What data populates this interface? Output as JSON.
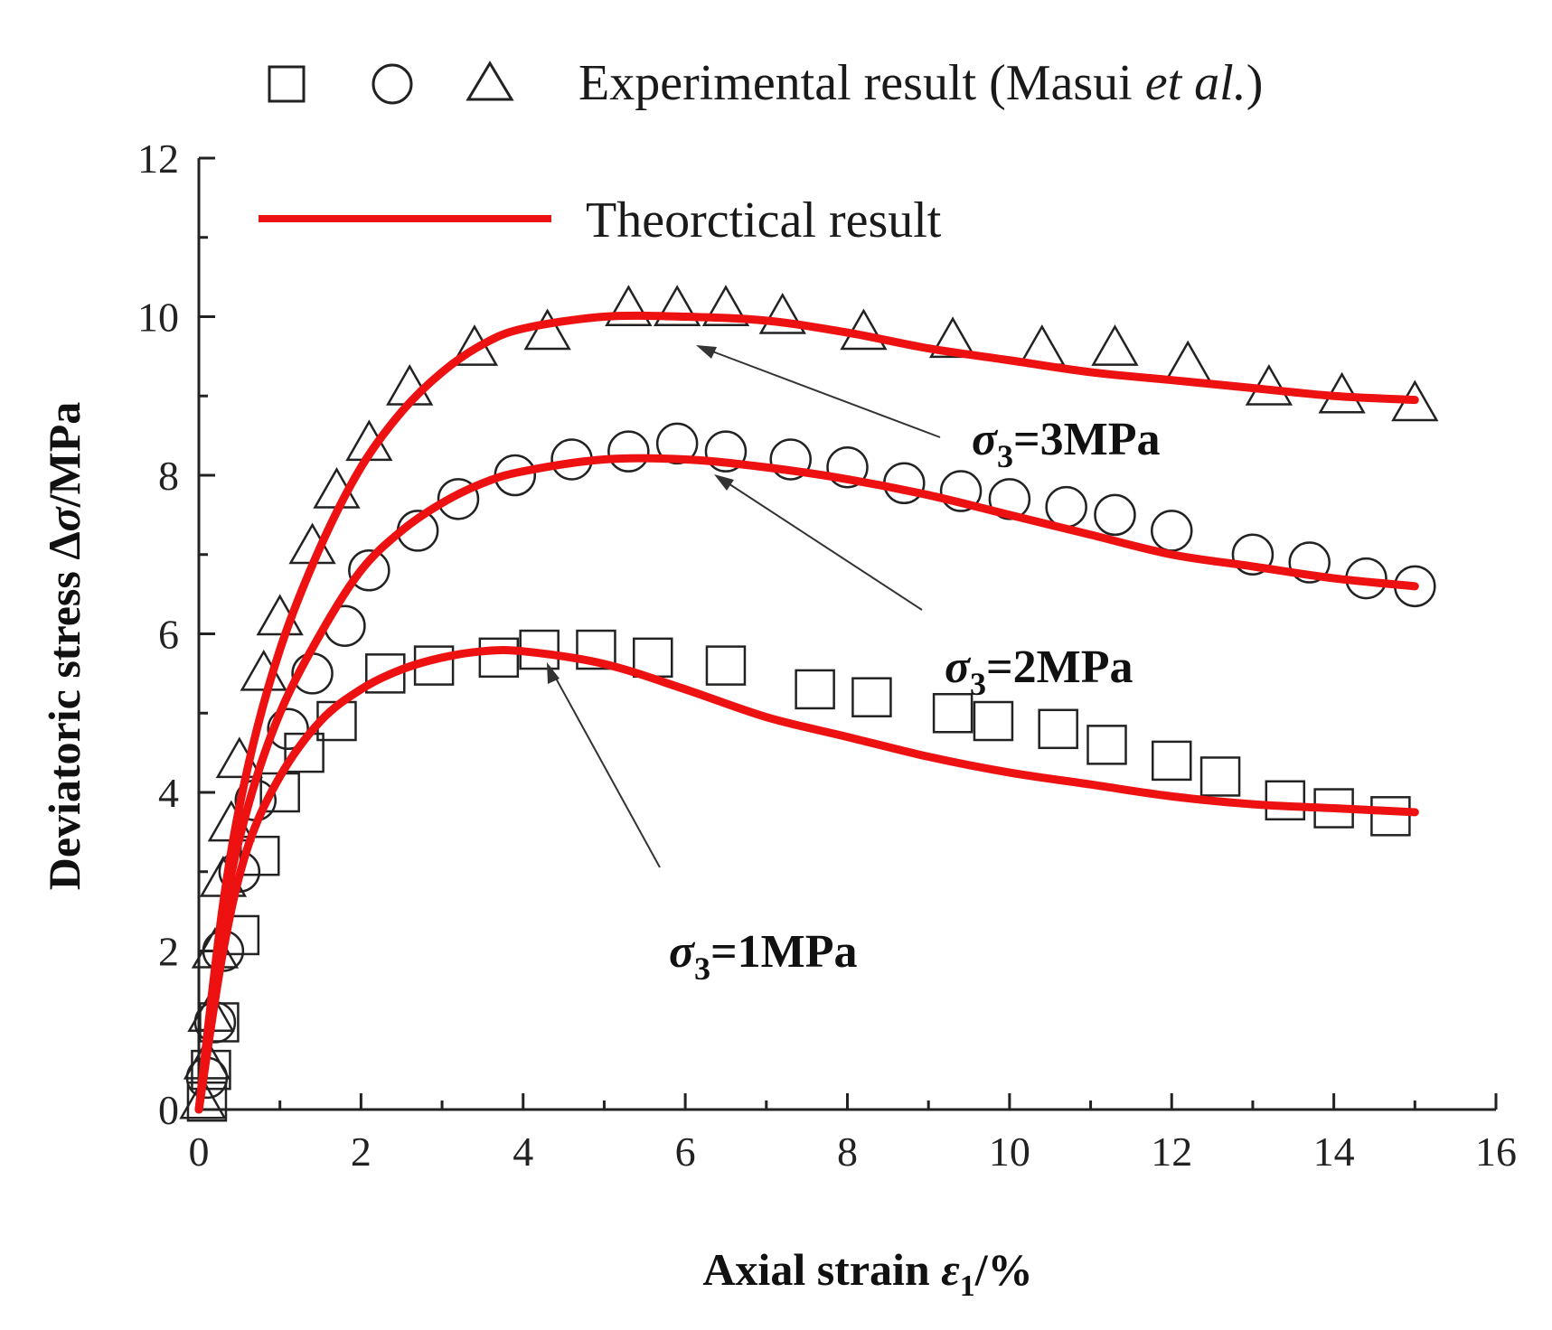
{
  "chart_data": {
    "type": "scatter",
    "xlabel": {
      "prefix": "Axial strain ",
      "symbol": "ε",
      "sub": "1",
      "suffix": "/%"
    },
    "ylabel": {
      "prefix": "Deviatoric stress Δ",
      "symbol": "σ",
      "suffix": "/MPa"
    },
    "xlim": [
      0,
      16
    ],
    "ylim": [
      0,
      12
    ],
    "x_ticks": [
      0,
      2,
      4,
      6,
      8,
      10,
      12,
      14,
      16
    ],
    "y_ticks": [
      0,
      2,
      4,
      6,
      8,
      10,
      12
    ],
    "grid": false,
    "legend": {
      "position": "top",
      "experimental": {
        "prefix": "Experimental result (Masui ",
        "italic": "et al.",
        "suffix": ")",
        "markers": [
          "square",
          "circle",
          "triangle"
        ]
      },
      "theoretical": {
        "label": "Theorctical result",
        "color": "#ee1111"
      }
    },
    "series": [
      {
        "name": "σ3=3MPa",
        "marker": "triangle",
        "annotation": {
          "symbol": "σ",
          "sub": "3",
          "text": "=3MPa"
        },
        "experimental": [
          [
            0.05,
            0.1
          ],
          [
            0.1,
            0.6
          ],
          [
            0.15,
            1.2
          ],
          [
            0.2,
            2.0
          ],
          [
            0.3,
            2.9
          ],
          [
            0.4,
            3.6
          ],
          [
            0.5,
            4.4
          ],
          [
            0.8,
            5.5
          ],
          [
            1.0,
            6.2
          ],
          [
            1.4,
            7.1
          ],
          [
            1.7,
            7.8
          ],
          [
            2.1,
            8.4
          ],
          [
            2.6,
            9.1
          ],
          [
            3.4,
            9.6
          ],
          [
            4.3,
            9.8
          ],
          [
            5.3,
            10.1
          ],
          [
            5.9,
            10.1
          ],
          [
            6.5,
            10.1
          ],
          [
            7.2,
            10.0
          ],
          [
            8.2,
            9.8
          ],
          [
            9.3,
            9.7
          ],
          [
            10.4,
            9.6
          ],
          [
            11.3,
            9.6
          ],
          [
            12.2,
            9.4
          ],
          [
            13.2,
            9.1
          ],
          [
            14.1,
            9.0
          ],
          [
            15.0,
            8.9
          ]
        ],
        "theoretical": [
          [
            0,
            0
          ],
          [
            0.3,
            2.6
          ],
          [
            0.6,
            4.3
          ],
          [
            1.0,
            5.8
          ],
          [
            1.5,
            7.1
          ],
          [
            2.0,
            8.1
          ],
          [
            2.5,
            8.8
          ],
          [
            3.0,
            9.3
          ],
          [
            3.5,
            9.65
          ],
          [
            4.0,
            9.85
          ],
          [
            5.0,
            10.0
          ],
          [
            6.0,
            10.0
          ],
          [
            7.0,
            9.95
          ],
          [
            8.0,
            9.8
          ],
          [
            9.0,
            9.6
          ],
          [
            10.0,
            9.45
          ],
          [
            11.0,
            9.3
          ],
          [
            12.0,
            9.2
          ],
          [
            13.0,
            9.1
          ],
          [
            14.0,
            9.0
          ],
          [
            15.0,
            8.95
          ]
        ]
      },
      {
        "name": "σ3=2MPa",
        "marker": "circle",
        "annotation": {
          "symbol": "σ",
          "sub": "3",
          "text": "=2MPa"
        },
        "experimental": [
          [
            0.1,
            0.4
          ],
          [
            0.2,
            1.1
          ],
          [
            0.3,
            2.0
          ],
          [
            0.5,
            3.0
          ],
          [
            0.7,
            3.9
          ],
          [
            1.1,
            4.8
          ],
          [
            1.4,
            5.5
          ],
          [
            1.8,
            6.1
          ],
          [
            2.1,
            6.8
          ],
          [
            2.7,
            7.3
          ],
          [
            3.2,
            7.7
          ],
          [
            3.9,
            8.0
          ],
          [
            4.6,
            8.2
          ],
          [
            5.3,
            8.3
          ],
          [
            5.9,
            8.4
          ],
          [
            6.5,
            8.3
          ],
          [
            7.3,
            8.2
          ],
          [
            8.0,
            8.1
          ],
          [
            8.7,
            7.9
          ],
          [
            9.4,
            7.8
          ],
          [
            10.0,
            7.7
          ],
          [
            10.7,
            7.6
          ],
          [
            11.3,
            7.5
          ],
          [
            12.0,
            7.3
          ],
          [
            13.0,
            7.0
          ],
          [
            13.7,
            6.9
          ],
          [
            14.4,
            6.7
          ],
          [
            15.0,
            6.6
          ]
        ],
        "theoretical": [
          [
            0,
            0
          ],
          [
            0.3,
            2.4
          ],
          [
            0.6,
            3.8
          ],
          [
            1.0,
            5.0
          ],
          [
            1.5,
            6.0
          ],
          [
            2.0,
            6.8
          ],
          [
            2.5,
            7.3
          ],
          [
            3.0,
            7.65
          ],
          [
            3.5,
            7.9
          ],
          [
            4.0,
            8.05
          ],
          [
            5.0,
            8.2
          ],
          [
            6.0,
            8.2
          ],
          [
            7.0,
            8.1
          ],
          [
            8.0,
            7.95
          ],
          [
            9.0,
            7.75
          ],
          [
            10.0,
            7.5
          ],
          [
            11.0,
            7.25
          ],
          [
            12.0,
            7.0
          ],
          [
            13.0,
            6.85
          ],
          [
            14.0,
            6.7
          ],
          [
            15.0,
            6.6
          ]
        ]
      },
      {
        "name": "σ3=1MPa",
        "marker": "square",
        "annotation": {
          "symbol": "σ",
          "sub": "3",
          "text": "=1MPa"
        },
        "experimental": [
          [
            0.1,
            0.1
          ],
          [
            0.15,
            0.5
          ],
          [
            0.25,
            1.1
          ],
          [
            0.5,
            2.2
          ],
          [
            0.75,
            3.2
          ],
          [
            1.0,
            4.0
          ],
          [
            1.3,
            4.5
          ],
          [
            1.7,
            4.9
          ],
          [
            2.3,
            5.5
          ],
          [
            2.9,
            5.6
          ],
          [
            3.7,
            5.7
          ],
          [
            4.2,
            5.8
          ],
          [
            4.9,
            5.8
          ],
          [
            5.6,
            5.7
          ],
          [
            6.5,
            5.6
          ],
          [
            7.6,
            5.3
          ],
          [
            8.3,
            5.2
          ],
          [
            9.3,
            5.0
          ],
          [
            9.8,
            4.9
          ],
          [
            10.6,
            4.8
          ],
          [
            11.2,
            4.6
          ],
          [
            12.0,
            4.4
          ],
          [
            12.6,
            4.2
          ],
          [
            13.4,
            3.9
          ],
          [
            14.0,
            3.8
          ],
          [
            14.7,
            3.7
          ]
        ],
        "theoretical": [
          [
            0,
            0
          ],
          [
            0.3,
            2.0
          ],
          [
            0.6,
            3.3
          ],
          [
            1.0,
            4.2
          ],
          [
            1.5,
            4.9
          ],
          [
            2.0,
            5.3
          ],
          [
            2.5,
            5.55
          ],
          [
            3.0,
            5.7
          ],
          [
            3.5,
            5.78
          ],
          [
            4.0,
            5.78
          ],
          [
            5.0,
            5.62
          ],
          [
            6.0,
            5.3
          ],
          [
            7.0,
            4.95
          ],
          [
            8.0,
            4.7
          ],
          [
            9.0,
            4.45
          ],
          [
            10.0,
            4.25
          ],
          [
            11.0,
            4.1
          ],
          [
            12.0,
            3.95
          ],
          [
            13.0,
            3.85
          ],
          [
            14.0,
            3.8
          ],
          [
            15.0,
            3.75
          ]
        ]
      }
    ]
  }
}
